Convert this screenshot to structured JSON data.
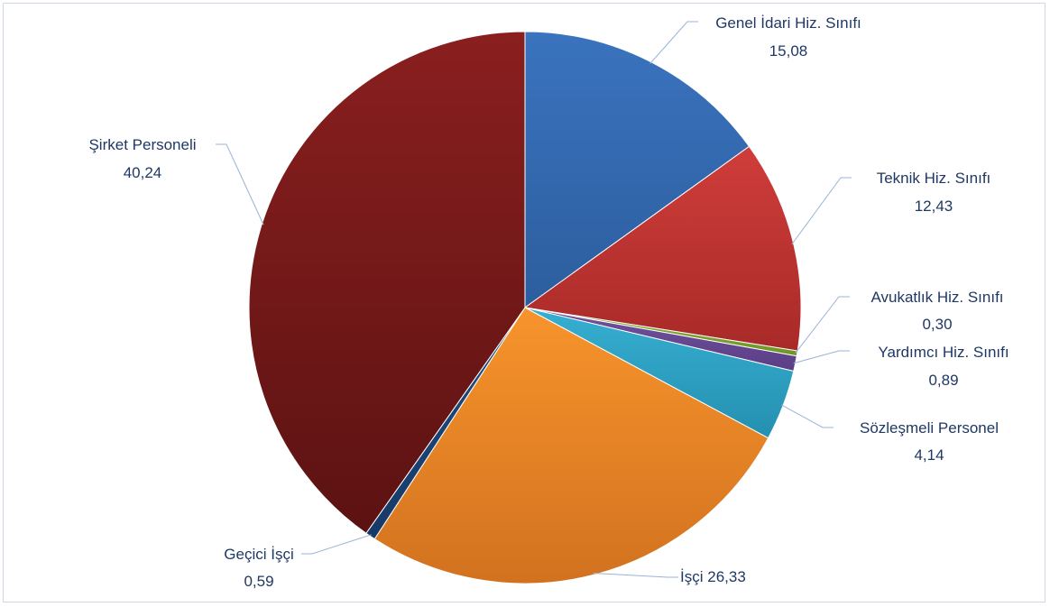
{
  "chart_data": {
    "type": "pie",
    "start_angle_deg": 0,
    "direction": "clockwise",
    "slices": [
      {
        "name": "Genel İdari Hiz. Sınıfı",
        "value": 15.08,
        "value_label": "15,08",
        "color": "#3a73be",
        "color_dark": "#2c5e9e"
      },
      {
        "name": "Teknik Hiz. Sınıfı",
        "value": 12.43,
        "value_label": "12,43",
        "color": "#cf3d3a",
        "color_dark": "#a82a28"
      },
      {
        "name": "Avukatlık Hiz. Sınıfı",
        "value": 0.3,
        "value_label": "0,30",
        "color": "#8cb33a",
        "color_dark": "#6e9428"
      },
      {
        "name": "Yardımcı Hiz. Sınıfı",
        "value": 0.89,
        "value_label": "0,89",
        "color": "#7252a0",
        "color_dark": "#5a3e85"
      },
      {
        "name": "Sözleşmeli Personel",
        "value": 4.14,
        "value_label": "4,14",
        "color": "#36afd1",
        "color_dark": "#2590b0"
      },
      {
        "name": "İşçi",
        "value": 26.33,
        "value_label": "26,33",
        "color": "#f7942c",
        "color_dark": "#d2721f"
      },
      {
        "name": "Geçici İşçi",
        "value": 0.59,
        "value_label": "0,59",
        "color": "#1f4e86",
        "color_dark": "#163a66"
      },
      {
        "name": "Şirket Personeli",
        "value": 40.24,
        "value_label": "40,24",
        "color": "#8a1f1f",
        "color_dark": "#5c1212"
      }
    ]
  }
}
